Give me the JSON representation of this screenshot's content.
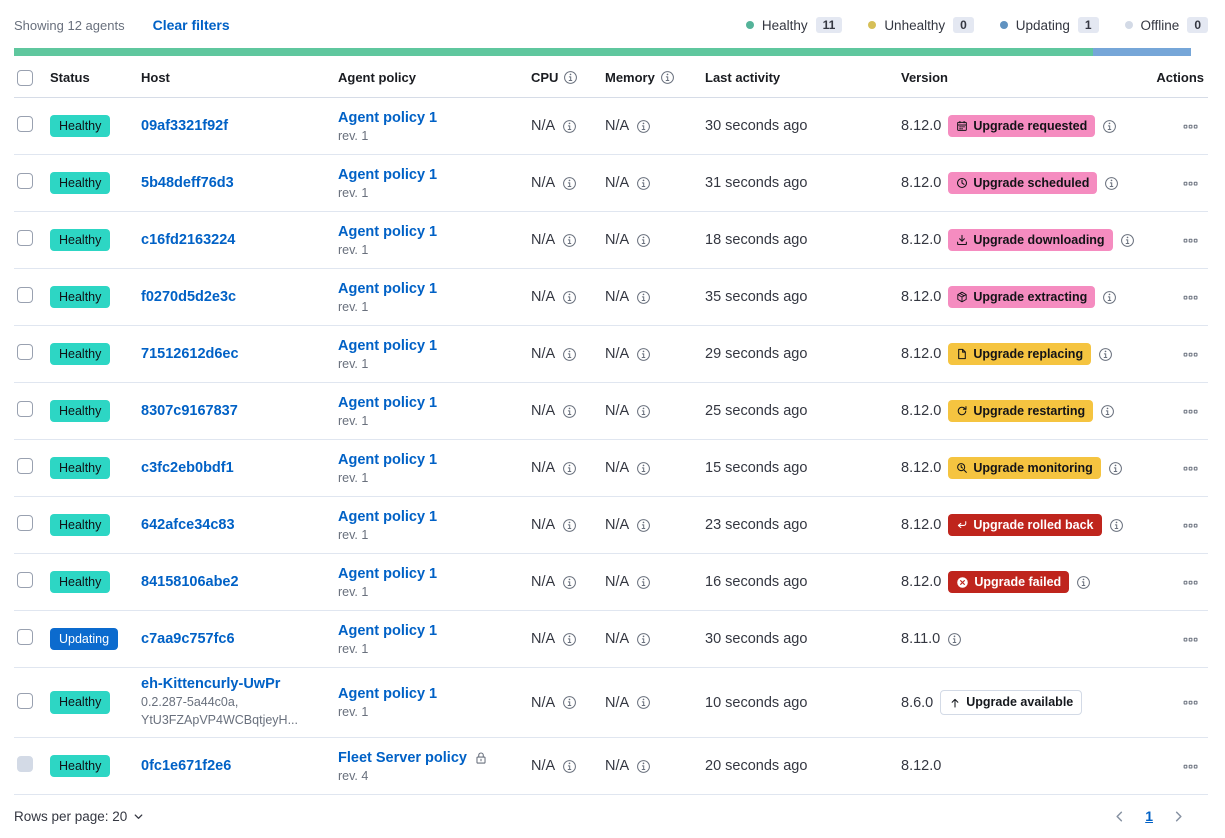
{
  "toolbar": {
    "showing": "Showing 12 agents",
    "clear_filters": "Clear filters",
    "legend": [
      {
        "label": "Healthy",
        "count": "11",
        "color": "#54B399"
      },
      {
        "label": "Unhealthy",
        "count": "0",
        "color": "#D6BF57"
      },
      {
        "label": "Updating",
        "count": "1",
        "color": "#6092C0"
      },
      {
        "label": "Offline",
        "count": "0",
        "color": "#D3DAE6"
      }
    ]
  },
  "progress_bar": {
    "segments": [
      {
        "status": "healthy",
        "color": "#5FC79E",
        "fraction": 11
      },
      {
        "status": "updating",
        "color": "#76A6D8",
        "fraction": 1
      }
    ]
  },
  "table": {
    "headers": {
      "status": "Status",
      "host": "Host",
      "policy": "Agent policy",
      "cpu": "CPU",
      "memory": "Memory",
      "last_activity": "Last activity",
      "version": "Version",
      "actions": "Actions"
    },
    "rows": [
      {
        "status": "Healthy",
        "status_kind": "healthy",
        "host": "09af3321f92f",
        "policy": "Agent policy 1",
        "rev": "rev. 1",
        "cpu": "N/A",
        "memory": "N/A",
        "last_activity": "30 seconds ago",
        "version": "8.12.0",
        "upgrade": {
          "label": "Upgrade requested",
          "icon": "calendar",
          "kind": "pink"
        },
        "version_info": true
      },
      {
        "status": "Healthy",
        "status_kind": "healthy",
        "host": "5b48deff76d3",
        "policy": "Agent policy 1",
        "rev": "rev. 1",
        "cpu": "N/A",
        "memory": "N/A",
        "last_activity": "31 seconds ago",
        "version": "8.12.0",
        "upgrade": {
          "label": "Upgrade scheduled",
          "icon": "clock",
          "kind": "pink"
        },
        "version_info": true
      },
      {
        "status": "Healthy",
        "status_kind": "healthy",
        "host": "c16fd2163224",
        "policy": "Agent policy 1",
        "rev": "rev. 1",
        "cpu": "N/A",
        "memory": "N/A",
        "last_activity": "18 seconds ago",
        "version": "8.12.0",
        "upgrade": {
          "label": "Upgrade downloading",
          "icon": "download",
          "kind": "pink"
        },
        "version_info": true
      },
      {
        "status": "Healthy",
        "status_kind": "healthy",
        "host": "f0270d5d2e3c",
        "policy": "Agent policy 1",
        "rev": "rev. 1",
        "cpu": "N/A",
        "memory": "N/A",
        "last_activity": "35 seconds ago",
        "version": "8.12.0",
        "upgrade": {
          "label": "Upgrade extracting",
          "icon": "package",
          "kind": "pink"
        },
        "version_info": true
      },
      {
        "status": "Healthy",
        "status_kind": "healthy",
        "host": "71512612d6ec",
        "policy": "Agent policy 1",
        "rev": "rev. 1",
        "cpu": "N/A",
        "memory": "N/A",
        "last_activity": "29 seconds ago",
        "version": "8.12.0",
        "upgrade": {
          "label": "Upgrade replacing",
          "icon": "document",
          "kind": "yellow"
        },
        "version_info": true
      },
      {
        "status": "Healthy",
        "status_kind": "healthy",
        "host": "8307c9167837",
        "policy": "Agent policy 1",
        "rev": "rev. 1",
        "cpu": "N/A",
        "memory": "N/A",
        "last_activity": "25 seconds ago",
        "version": "8.12.0",
        "upgrade": {
          "label": "Upgrade restarting",
          "icon": "refresh",
          "kind": "yellow"
        },
        "version_info": true
      },
      {
        "status": "Healthy",
        "status_kind": "healthy",
        "host": "c3fc2eb0bdf1",
        "policy": "Agent policy 1",
        "rev": "rev. 1",
        "cpu": "N/A",
        "memory": "N/A",
        "last_activity": "15 seconds ago",
        "version": "8.12.0",
        "upgrade": {
          "label": "Upgrade monitoring",
          "icon": "inspect",
          "kind": "yellow"
        },
        "version_info": true
      },
      {
        "status": "Healthy",
        "status_kind": "healthy",
        "host": "642afce34c83",
        "policy": "Agent policy 1",
        "rev": "rev. 1",
        "cpu": "N/A",
        "memory": "N/A",
        "last_activity": "23 seconds ago",
        "version": "8.12.0",
        "upgrade": {
          "label": "Upgrade rolled back",
          "icon": "return",
          "kind": "red"
        },
        "version_info": true
      },
      {
        "status": "Healthy",
        "status_kind": "healthy",
        "host": "84158106abe2",
        "policy": "Agent policy 1",
        "rev": "rev. 1",
        "cpu": "N/A",
        "memory": "N/A",
        "last_activity": "16 seconds ago",
        "version": "8.12.0",
        "upgrade": {
          "label": "Upgrade failed",
          "icon": "error",
          "kind": "red"
        },
        "version_info": true
      },
      {
        "status": "Updating",
        "status_kind": "updating",
        "host": "c7aa9c757fc6",
        "policy": "Agent policy 1",
        "rev": "rev. 1",
        "cpu": "N/A",
        "memory": "N/A",
        "last_activity": "30 seconds ago",
        "version": "8.11.0",
        "upgrade": null,
        "version_info": true
      },
      {
        "status": "Healthy",
        "status_kind": "healthy",
        "host": "eh-Kittencurly-UwPr",
        "host_sub": [
          "0.2.287-5a44c0a,",
          "YtU3FZApVP4WCBqtjeyH..."
        ],
        "policy": "Agent policy 1",
        "rev": "rev. 1",
        "cpu": "N/A",
        "memory": "N/A",
        "last_activity": "10 seconds ago",
        "version": "8.6.0",
        "upgrade": {
          "label": "Upgrade available",
          "icon": "arrow-up",
          "kind": "hollow"
        },
        "version_info": false
      },
      {
        "status": "Healthy",
        "status_kind": "healthy",
        "host": "0fc1e671f2e6",
        "policy": "Fleet Server policy",
        "policy_lock": true,
        "rev": "rev. 4",
        "cpu": "N/A",
        "memory": "N/A",
        "last_activity": "20 seconds ago",
        "version": "8.12.0",
        "upgrade": null,
        "version_info": false,
        "checkbox_disabled": true
      }
    ]
  },
  "footer": {
    "rows_per_page": "Rows per page: 20",
    "page": "1"
  },
  "colors": {
    "healthy_badge": "#2DD6C4",
    "updating_badge": "#0C6BCE",
    "upgrade_pink": "#F58CC0",
    "upgrade_yellow": "#F5C440",
    "upgrade_red": "#BF251D",
    "link_blue": "#0061C6"
  }
}
